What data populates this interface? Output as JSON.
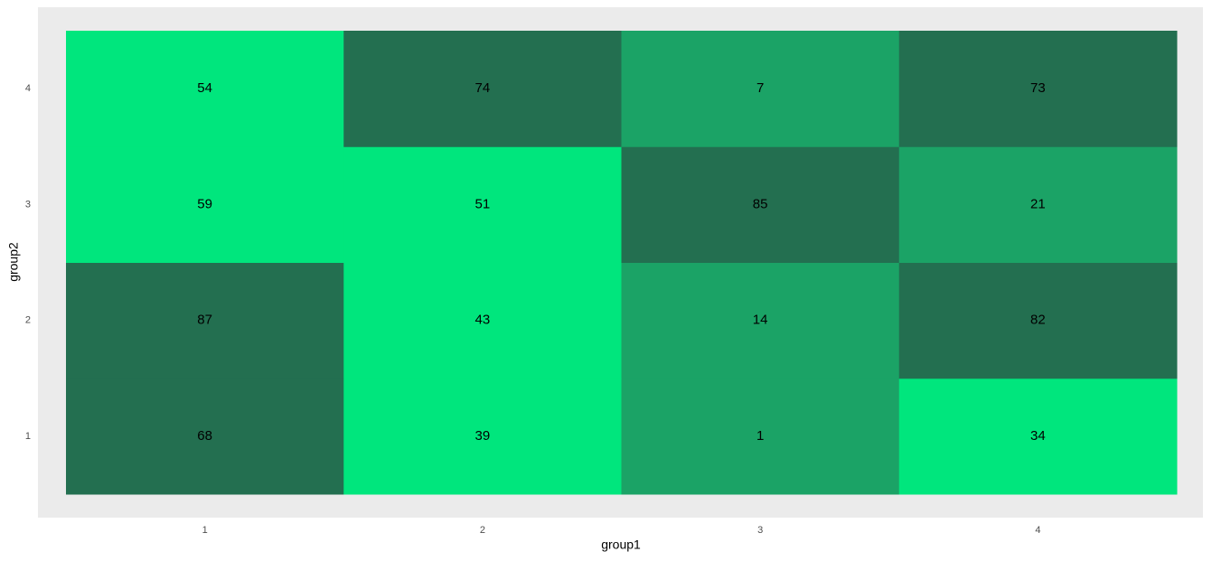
{
  "chart_data": {
    "type": "heatmap",
    "x_label": "group1",
    "y_label": "group2",
    "x_categories": [
      "1",
      "2",
      "3",
      "4"
    ],
    "y_categories": [
      "1",
      "2",
      "3",
      "4"
    ],
    "values": [
      [
        68,
        39,
        1,
        34
      ],
      [
        87,
        43,
        14,
        82
      ],
      [
        59,
        51,
        85,
        21
      ],
      [
        54,
        74,
        7,
        73
      ]
    ],
    "colors": [
      [
        "#236f50",
        "#00e67d",
        "#1ba366",
        "#00e67d"
      ],
      [
        "#236f50",
        "#00e67d",
        "#1ba366",
        "#236f50"
      ],
      [
        "#00e67d",
        "#00e67d",
        "#236f50",
        "#1ba366"
      ],
      [
        "#00e67d",
        "#236f50",
        "#1ba366",
        "#236f50"
      ]
    ]
  }
}
